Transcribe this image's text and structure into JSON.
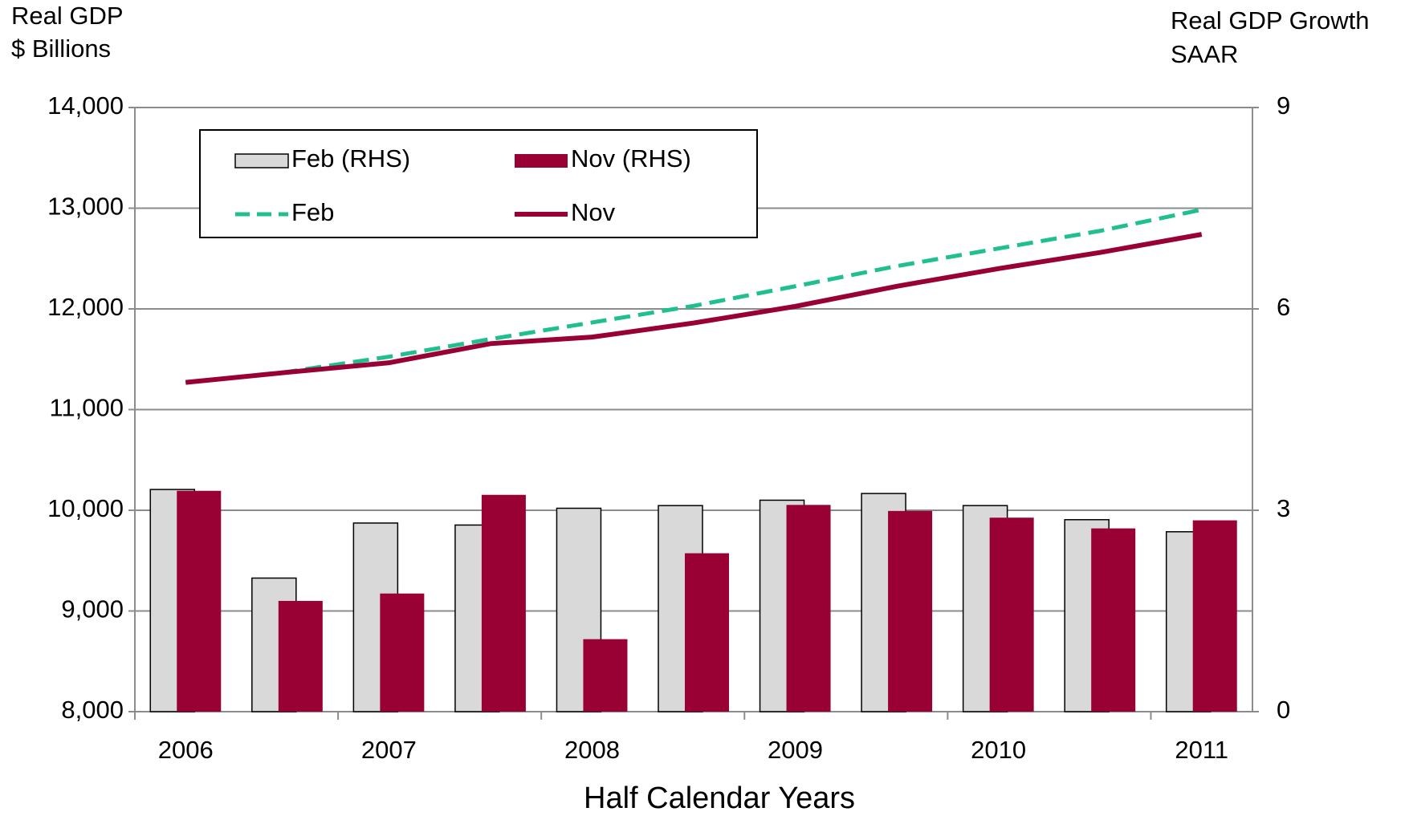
{
  "chart_data": {
    "type": "bar",
    "y_axis_label": [
      "Real GDP",
      "$ Billions"
    ],
    "y2_axis_label": [
      "Real GDP Growth",
      "SAAR"
    ],
    "x_axis_label": "Half Calendar Years",
    "categories": [
      "2006",
      null,
      "2007",
      null,
      "2008",
      null,
      "2009",
      null,
      "2010",
      null,
      "2011"
    ],
    "ylim": [
      8000,
      14000
    ],
    "yticks": [
      {
        "value": 8000,
        "label": "8,000"
      },
      {
        "value": 9000,
        "label": "9,000"
      },
      {
        "value": 10000,
        "label": "10,000"
      },
      {
        "value": 11000,
        "label": "11,000"
      },
      {
        "value": 12000,
        "label": "12,000"
      },
      {
        "value": 13000,
        "label": "13,000"
      },
      {
        "value": 14000,
        "label": "14,000"
      }
    ],
    "y2lim": [
      0,
      9
    ],
    "y2ticks": [
      0,
      3,
      6,
      9
    ],
    "grid": true,
    "legend": "upper left",
    "series": [
      {
        "name": "Feb (RHS)",
        "type": "bar",
        "axis": "y2",
        "color": "#d9d9d9",
        "values": [
          3.31,
          1.99,
          2.81,
          2.78,
          3.03,
          3.07,
          3.15,
          3.25,
          3.07,
          2.86,
          2.68
        ]
      },
      {
        "name": "Nov (RHS)",
        "type": "bar",
        "axis": "y2",
        "color": "#990033",
        "values": [
          3.29,
          1.65,
          1.76,
          3.23,
          1.08,
          2.36,
          3.08,
          2.99,
          2.89,
          2.73,
          2.85
        ]
      },
      {
        "name": "Feb",
        "type": "line",
        "style": "dashed",
        "color": "#1fbf8f",
        "values": [
          11270,
          11375,
          11525,
          11700,
          11865,
          12030,
          12225,
          12425,
          12600,
          12775,
          12985
        ]
      },
      {
        "name": "Nov",
        "type": "line",
        "style": "solid",
        "color": "#990033",
        "values": [
          11270,
          11370,
          11465,
          11655,
          11720,
          11860,
          12025,
          12225,
          12400,
          12560,
          12740
        ]
      }
    ]
  }
}
